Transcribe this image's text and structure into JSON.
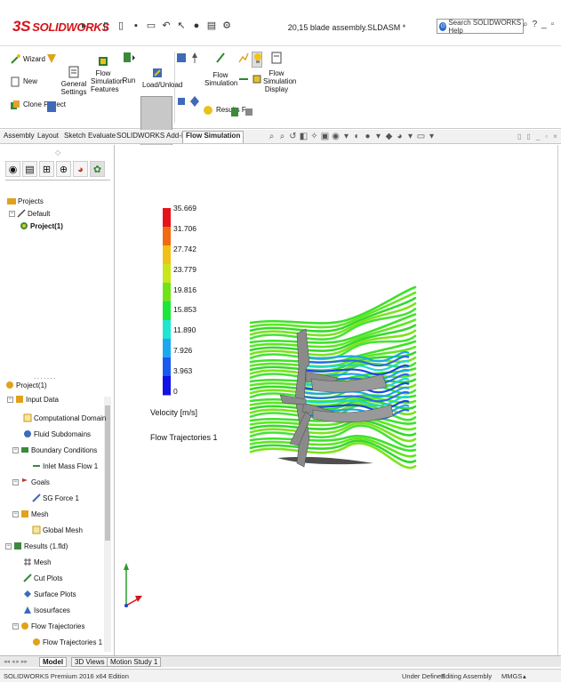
{
  "app": {
    "logo_text": "SOLIDWORKS",
    "document_title": "20,15 blade assembly.SLDASM *",
    "search_placeholder": "Search SOLIDWORKS Help",
    "help_glyph": "?",
    "brand_color": "#d4141b"
  },
  "ribbon": {
    "wizard": "Wizard",
    "new": "New",
    "clone_project": "Clone Project",
    "general_settings": "General Settings",
    "flow_simulation_features": "Flow Simulation Features",
    "run": "Run",
    "load_unload": "Load/Unload",
    "flow_simulation": "Flow Simulation",
    "results_features": "Results F...",
    "flow_simulation_display": "Flow Simulation Display"
  },
  "tabs": [
    "Assembly",
    "Layout",
    "Sketch",
    "Evaluate",
    "SOLIDWORKS Add-Ins",
    "Flow Simulation"
  ],
  "active_tab": "Flow Simulation",
  "projects_tree": {
    "root": "Projects",
    "default": "Default",
    "project": "Project(1)"
  },
  "analysis_tree": {
    "root": "Project(1)",
    "input_data": "Input Data",
    "computational_domain": "Computational Domain",
    "fluid_subdomains": "Fluid Subdomains",
    "boundary_conditions": "Boundary Conditions",
    "inlet_mass_flow": "Inlet Mass Flow 1",
    "goals": "Goals",
    "sg_force": "SG Force 1",
    "mesh": "Mesh",
    "global_mesh": "Global Mesh",
    "results": "Results (1.fld)",
    "results_mesh": "Mesh",
    "cut_plots": "Cut Plots",
    "surface_plots": "Surface Plots",
    "isosurfaces": "Isosurfaces",
    "flow_trajectories": "Flow Trajectories",
    "flow_trajectories_1": "Flow Trajectories 1"
  },
  "legend": {
    "ticks": [
      "35.669",
      "31.706",
      "27.742",
      "23.779",
      "19.816",
      "15.853",
      "11.890",
      "7.926",
      "3.963",
      "0"
    ],
    "units_label": "Velocity [m/s]",
    "plot_name": "Flow Trajectories 1",
    "colors": [
      "#e8131a",
      "#f26a10",
      "#f2c018",
      "#c8e619",
      "#6fe317",
      "#1de63a",
      "#1ee6d1",
      "#1aa9f0",
      "#1a5af0",
      "#1211e6"
    ]
  },
  "bottom_tabs": [
    "Model",
    "3D Views",
    "Motion Study 1"
  ],
  "active_bottom_tab": "Model",
  "status": {
    "edition": "SOLIDWORKS Premium 2016 x64 Edition",
    "defined": "Under Defined",
    "editing": "Editing Assembly",
    "units": "MMGS"
  }
}
